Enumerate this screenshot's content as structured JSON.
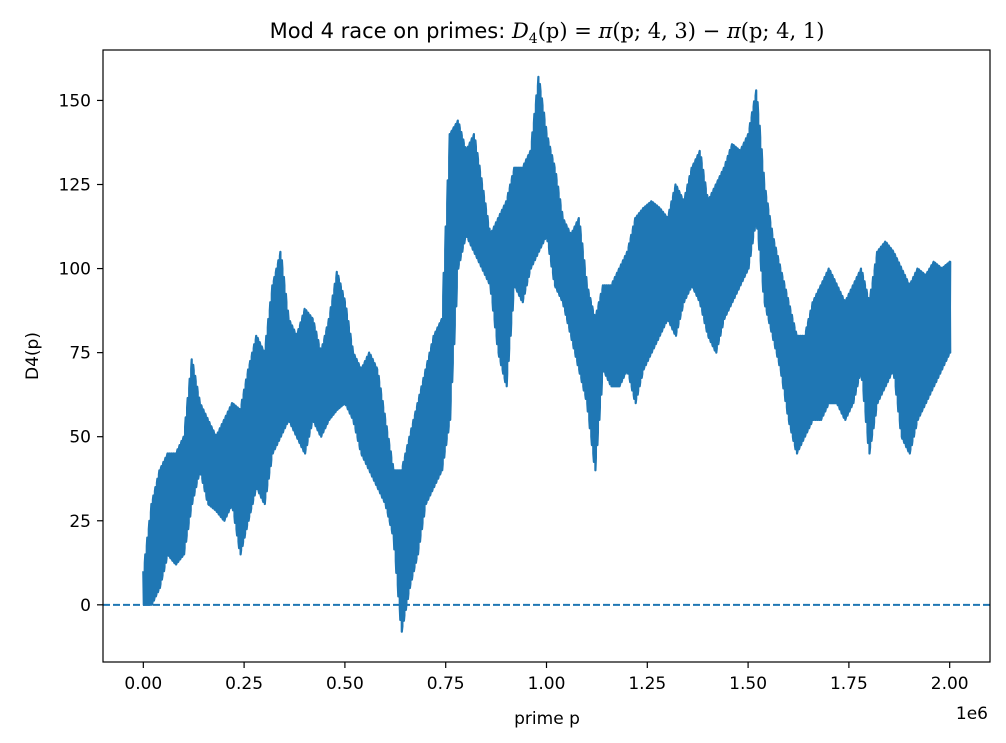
{
  "chart_data": {
    "type": "line",
    "title": {
      "prefix": "Mod 4 race on primes: ",
      "D": "D",
      "sub": "4",
      "lhs_arg": "(p)",
      "eq": " = ",
      "pi1": "π",
      "arg1": "(p; 4, 3)",
      "minus": " − ",
      "pi2": "π",
      "arg2": "(p; 4, 1)"
    },
    "xlabel": "prime p",
    "ylabel": "D4(p)",
    "x_offset_label": "1e6",
    "x_scale": 1000000,
    "xlim": [
      -100000,
      2100000
    ],
    "ylim": [
      -17,
      165
    ],
    "x_ticks": [
      0,
      250000,
      500000,
      750000,
      1000000,
      1250000,
      1500000,
      1750000,
      2000000
    ],
    "x_tick_labels": [
      "0.00",
      "0.25",
      "0.50",
      "0.75",
      "1.00",
      "1.25",
      "1.50",
      "1.75",
      "2.00"
    ],
    "y_ticks": [
      0,
      25,
      50,
      75,
      100,
      125,
      150
    ],
    "y_tick_labels": [
      "0",
      "25",
      "50",
      "75",
      "100",
      "125",
      "150"
    ],
    "grid": false,
    "line_color": "#1f77b4",
    "reference_line": {
      "y": 0,
      "style": "dashed",
      "color": "#1f77b4"
    },
    "series": [
      {
        "x": [
          0,
          20000,
          40000,
          60000,
          80000,
          100000,
          120000,
          140000,
          160000,
          180000,
          200000,
          220000,
          240000,
          260000,
          280000,
          300000,
          320000,
          340000,
          360000,
          380000,
          400000,
          420000,
          440000,
          460000,
          480000,
          500000,
          520000,
          540000,
          560000,
          580000,
          600000,
          620000,
          640000,
          660000,
          680000,
          700000,
          720000,
          740000,
          760000,
          780000,
          800000,
          820000,
          840000,
          860000,
          880000,
          900000,
          920000,
          940000,
          960000,
          980000,
          1000000,
          1020000,
          1040000,
          1060000,
          1080000,
          1100000,
          1120000,
          1140000,
          1160000,
          1180000,
          1200000,
          1220000,
          1240000,
          1260000,
          1280000,
          1300000,
          1320000,
          1340000,
          1360000,
          1380000,
          1400000,
          1420000,
          1440000,
          1460000,
          1480000,
          1500000,
          1520000,
          1540000,
          1560000,
          1580000,
          1600000,
          1620000,
          1640000,
          1660000,
          1680000,
          1700000,
          1720000,
          1740000,
          1760000,
          1780000,
          1800000,
          1820000,
          1840000,
          1860000,
          1880000,
          1900000,
          1920000,
          1940000,
          1960000,
          1980000,
          2000000
        ],
        "min": [
          0,
          0,
          5,
          15,
          12,
          15,
          30,
          40,
          30,
          28,
          25,
          30,
          15,
          25,
          35,
          30,
          45,
          50,
          55,
          50,
          45,
          55,
          50,
          55,
          58,
          60,
          55,
          45,
          40,
          35,
          30,
          20,
          -8,
          5,
          15,
          30,
          35,
          40,
          55,
          100,
          110,
          105,
          100,
          95,
          75,
          65,
          95,
          90,
          100,
          105,
          110,
          95,
          90,
          80,
          70,
          60,
          40,
          70,
          65,
          65,
          70,
          60,
          70,
          75,
          80,
          85,
          80,
          90,
          95,
          90,
          80,
          75,
          85,
          90,
          95,
          100,
          115,
          90,
          80,
          70,
          55,
          45,
          50,
          55,
          55,
          60,
          60,
          55,
          60,
          70,
          45,
          60,
          65,
          70,
          50,
          45,
          55,
          60,
          65,
          70,
          75
        ],
        "max": [
          10,
          30,
          40,
          45,
          45,
          50,
          73,
          60,
          55,
          50,
          55,
          60,
          58,
          70,
          80,
          75,
          95,
          105,
          85,
          80,
          88,
          85,
          75,
          85,
          99,
          90,
          75,
          70,
          75,
          70,
          55,
          40,
          40,
          50,
          60,
          70,
          80,
          85,
          140,
          144,
          135,
          140,
          125,
          110,
          115,
          120,
          130,
          130,
          135,
          157,
          140,
          130,
          115,
          110,
          115,
          95,
          85,
          95,
          95,
          100,
          105,
          115,
          118,
          120,
          118,
          115,
          125,
          120,
          130,
          135,
          120,
          125,
          130,
          137,
          135,
          140,
          153,
          125,
          110,
          100,
          90,
          80,
          80,
          90,
          95,
          100,
          95,
          90,
          95,
          100,
          90,
          105,
          108,
          105,
          100,
          95,
          100,
          98,
          102,
          100,
          102
        ]
      }
    ]
  }
}
